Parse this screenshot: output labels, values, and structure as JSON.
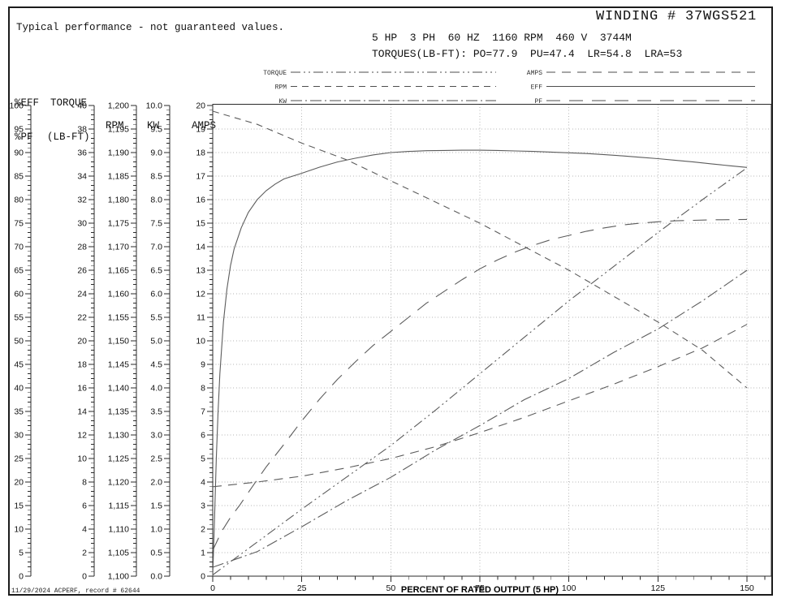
{
  "header": {
    "note": "Typical performance - not guaranteed values.",
    "winding_title": "WINDING # 37WGS521",
    "spec_line": "5 HP  3 PH  60 HZ  1160 RPM  460 V  3744M",
    "torques_line": "TORQUES(LB-FT): PO=77.9  PU=47.4  LR=54.8  LRA=53"
  },
  "legend": {
    "left": [
      {
        "label": "TORQUE",
        "series": "torque"
      },
      {
        "label": "RPM",
        "series": "rpm"
      },
      {
        "label": "KW",
        "series": "kw"
      }
    ],
    "right": [
      {
        "label": "AMPS",
        "series": "amps"
      },
      {
        "label": "EFF",
        "series": "eff"
      },
      {
        "label": "PF",
        "series": "pf"
      }
    ]
  },
  "axes_panel": {
    "column_headers": [
      {
        "id": "eff_pf",
        "lines": [
          "%EFF",
          "%PF"
        ]
      },
      {
        "id": "torque",
        "lines": [
          "TORQUE",
          "(LB-FT)"
        ]
      },
      {
        "id": "rpm",
        "lines": [
          "",
          "RPM"
        ]
      },
      {
        "id": "kw",
        "lines": [
          "",
          "KW"
        ]
      },
      {
        "id": "amps",
        "lines": [
          "",
          "AMPS"
        ]
      }
    ]
  },
  "chart_data": {
    "type": "line",
    "title": "",
    "xlabel": "PERCENT OF RATED OUTPUT (5 HP)",
    "x_range": [
      0,
      150
    ],
    "x_tick_step": 25,
    "x_minor_step": 5,
    "x_tick_labels": [
      "0",
      "25",
      "50",
      "75",
      "100",
      "125",
      "150"
    ],
    "grid": true,
    "y_axes": [
      {
        "id": "eff_pf",
        "min": 0,
        "max": 100,
        "tick_labels": [
          "100",
          "95",
          "90",
          "85",
          "80",
          "75",
          "70",
          "65",
          "60",
          "55",
          "50",
          "45",
          "40",
          "35",
          "30",
          "25",
          "20",
          "15",
          "10",
          "5",
          "0"
        ]
      },
      {
        "id": "torque",
        "min": 0,
        "max": 40,
        "tick_labels": [
          "40",
          "38",
          "36",
          "34",
          "32",
          "30",
          "28",
          "26",
          "24",
          "22",
          "20",
          "18",
          "16",
          "14",
          "12",
          "10",
          "8",
          "6",
          "4",
          "2",
          "0"
        ]
      },
      {
        "id": "rpm",
        "min": 1100,
        "max": 1200,
        "tick_labels": [
          "1,200",
          "1,195",
          "1,190",
          "1,185",
          "1,180",
          "1,175",
          "1,170",
          "1,165",
          "1,160",
          "1,155",
          "1,150",
          "1,145",
          "1,140",
          "1,135",
          "1,130",
          "1,125",
          "1,120",
          "1,115",
          "1,110",
          "1,105",
          "1,100"
        ]
      },
      {
        "id": "kw",
        "min": 0,
        "max": 10,
        "tick_labels": [
          "10.0",
          "9.5",
          "9.0",
          "8.5",
          "8.0",
          "7.5",
          "7.0",
          "6.5",
          "6.0",
          "5.5",
          "5.0",
          "4.5",
          "4.0",
          "3.5",
          "3.0",
          "2.5",
          "2.0",
          "1.5",
          "1.0",
          "0.5",
          "0.0"
        ]
      },
      {
        "id": "amps",
        "min": 0,
        "max": 20,
        "tick_labels": [
          "20",
          "19",
          "18",
          "17",
          "16",
          "15",
          "14",
          "13",
          "12",
          "11",
          "10",
          "9",
          "8",
          "7",
          "6",
          "5",
          "4",
          "3",
          "2",
          "1",
          "0"
        ]
      }
    ],
    "series": [
      {
        "id": "eff",
        "name": "EFF",
        "axis": "eff_pf",
        "style": "solid",
        "points": [
          [
            0,
            0
          ],
          [
            0.5,
            12
          ],
          [
            1,
            25
          ],
          [
            1.5,
            35
          ],
          [
            2,
            43
          ],
          [
            3,
            54
          ],
          [
            4,
            61
          ],
          [
            5,
            66
          ],
          [
            6,
            69.5
          ],
          [
            8,
            74
          ],
          [
            10,
            77.3
          ],
          [
            12.5,
            80
          ],
          [
            15,
            81.9
          ],
          [
            17.5,
            83.3
          ],
          [
            20,
            84.4
          ],
          [
            22.5,
            85
          ],
          [
            25,
            85.6
          ],
          [
            30,
            86.9
          ],
          [
            35,
            88
          ],
          [
            40,
            88.8
          ],
          [
            45,
            89.5
          ],
          [
            50,
            90
          ],
          [
            55,
            90.25
          ],
          [
            60,
            90.4
          ],
          [
            65,
            90.45
          ],
          [
            70,
            90.5
          ],
          [
            75,
            90.5
          ],
          [
            80,
            90.45
          ],
          [
            85,
            90.35
          ],
          [
            90,
            90.25
          ],
          [
            95,
            90.1
          ],
          [
            100,
            89.95
          ],
          [
            105,
            89.8
          ],
          [
            110,
            89.55
          ],
          [
            115,
            89.3
          ],
          [
            120,
            89
          ],
          [
            125,
            88.7
          ],
          [
            130,
            88.35
          ],
          [
            135,
            88
          ],
          [
            140,
            87.6
          ],
          [
            145,
            87.2
          ],
          [
            150,
            86.85
          ]
        ]
      },
      {
        "id": "pf",
        "name": "PF",
        "axis": "eff_pf",
        "style": "long-dash",
        "points": [
          [
            0,
            5.5
          ],
          [
            2.5,
            9.5
          ],
          [
            5,
            12.5
          ],
          [
            7.5,
            15
          ],
          [
            10,
            17.8
          ],
          [
            12.5,
            20.5
          ],
          [
            15,
            23.2
          ],
          [
            17.5,
            25.6
          ],
          [
            20,
            28
          ],
          [
            25,
            33
          ],
          [
            30,
            37.6
          ],
          [
            35,
            41.8
          ],
          [
            40,
            45.5
          ],
          [
            45,
            49
          ],
          [
            50,
            52
          ],
          [
            55,
            55
          ],
          [
            60,
            58
          ],
          [
            65,
            60.5
          ],
          [
            70,
            63
          ],
          [
            75,
            65.3
          ],
          [
            80,
            67.2
          ],
          [
            85,
            68.9
          ],
          [
            90,
            70.3
          ],
          [
            95,
            71.5
          ],
          [
            100,
            72.4
          ],
          [
            105,
            73.3
          ],
          [
            110,
            74
          ],
          [
            115,
            74.6
          ],
          [
            120,
            75
          ],
          [
            125,
            75.3
          ],
          [
            130,
            75.5
          ],
          [
            135,
            75.6
          ],
          [
            140,
            75.7
          ],
          [
            145,
            75.75
          ],
          [
            150,
            75.8
          ]
        ]
      },
      {
        "id": "rpm",
        "name": "RPM",
        "axis": "rpm",
        "style": "dash",
        "points": [
          [
            0,
            1198.8
          ],
          [
            12.5,
            1196
          ],
          [
            25,
            1192
          ],
          [
            37.5,
            1188.5
          ],
          [
            50,
            1184
          ],
          [
            62.5,
            1179.5
          ],
          [
            75,
            1175
          ],
          [
            87.5,
            1170
          ],
          [
            100,
            1165
          ],
          [
            112.5,
            1159.5
          ],
          [
            125,
            1154
          ],
          [
            137.5,
            1148
          ],
          [
            150,
            1140
          ]
        ]
      },
      {
        "id": "torque",
        "name": "TORQUE",
        "axis": "torque",
        "style": "dash-dot-dot",
        "points": [
          [
            0,
            0.1
          ],
          [
            12.5,
            2.9
          ],
          [
            25,
            5.7
          ],
          [
            37.5,
            8.4
          ],
          [
            50,
            11.1
          ],
          [
            62.5,
            14.1
          ],
          [
            75,
            17.2
          ],
          [
            87.5,
            20.3
          ],
          [
            100,
            23.4
          ],
          [
            112.5,
            26.3
          ],
          [
            125,
            29.2
          ],
          [
            137.5,
            32
          ],
          [
            150,
            34.7
          ]
        ]
      },
      {
        "id": "kw",
        "name": "KW",
        "axis": "kw",
        "style": "dash-dot",
        "points": [
          [
            0,
            0.19
          ],
          [
            12.5,
            0.52
          ],
          [
            25,
            1.05
          ],
          [
            37.5,
            1.6
          ],
          [
            50,
            2.1
          ],
          [
            62.5,
            2.68
          ],
          [
            75,
            3.2
          ],
          [
            87.5,
            3.75
          ],
          [
            100,
            4.2
          ],
          [
            112.5,
            4.75
          ],
          [
            125,
            5.25
          ],
          [
            137.5,
            5.85
          ],
          [
            150,
            6.5
          ]
        ]
      },
      {
        "id": "amps",
        "name": "AMPS",
        "axis": "amps",
        "style": "dash-gap",
        "points": [
          [
            0,
            3.8
          ],
          [
            12.5,
            4.0
          ],
          [
            25,
            4.25
          ],
          [
            37.5,
            4.6
          ],
          [
            50,
            5.0
          ],
          [
            62.5,
            5.5
          ],
          [
            75,
            6.1
          ],
          [
            87.5,
            6.75
          ],
          [
            100,
            7.45
          ],
          [
            112.5,
            8.15
          ],
          [
            125,
            8.9
          ],
          [
            137.5,
            9.7
          ],
          [
            150,
            10.7
          ]
        ]
      }
    ],
    "colors": {
      "curve": "#5c5c5c",
      "grid": "#b4b4b4",
      "axis": "#2a2a2a",
      "text": "#111111"
    }
  },
  "footer": {
    "text": "11/29/2024 ACPERF, record # 62644"
  }
}
